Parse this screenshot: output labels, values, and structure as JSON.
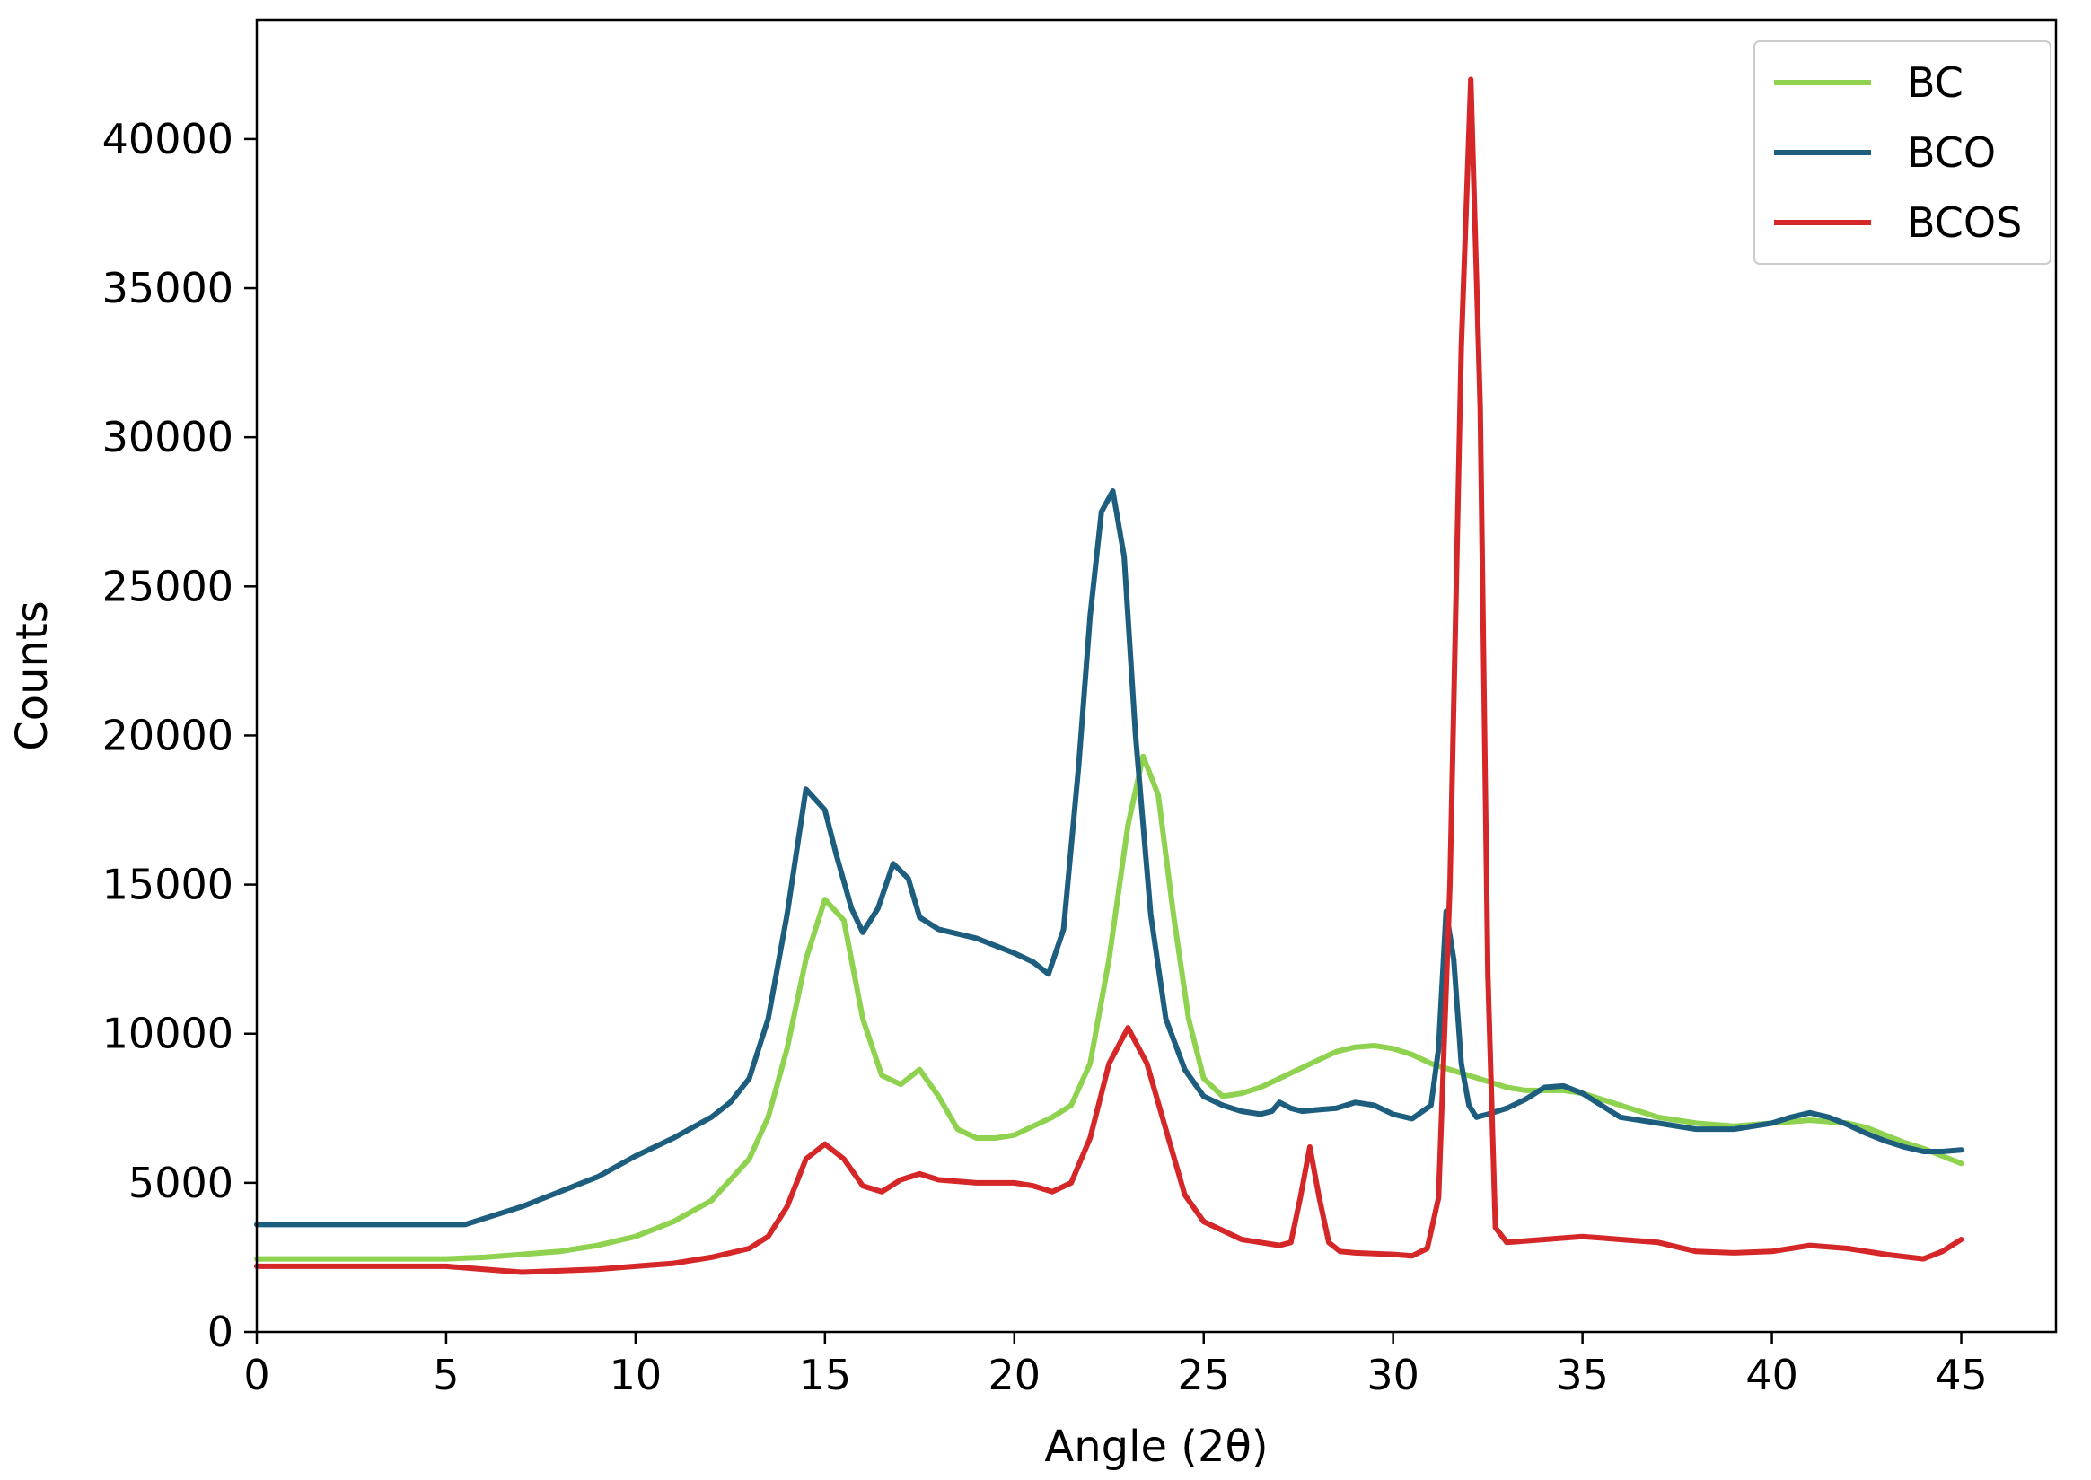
{
  "chart_data": {
    "type": "line",
    "title": "",
    "xlabel": "Angle (2θ)",
    "ylabel": "Counts",
    "xlim": [
      0,
      47.5
    ],
    "ylim": [
      0,
      44000
    ],
    "xticks": [
      0,
      5,
      10,
      15,
      20,
      25,
      30,
      35,
      40,
      45
    ],
    "yticks": [
      0,
      5000,
      10000,
      15000,
      20000,
      25000,
      30000,
      35000,
      40000
    ],
    "grid": false,
    "legend_position": "top-right",
    "series": [
      {
        "name": "BC",
        "color": "#8ed24f",
        "x": [
          0,
          5,
          6,
          7,
          8,
          9,
          10,
          11,
          12,
          13,
          13.5,
          14,
          14.5,
          15,
          15.5,
          16,
          16.5,
          17,
          17.5,
          18,
          18.5,
          19,
          19.5,
          20,
          20.5,
          21,
          21.5,
          22,
          22.5,
          23,
          23.4,
          23.8,
          24.2,
          24.6,
          25,
          25.5,
          26,
          26.5,
          27,
          27.5,
          28,
          28.5,
          29,
          29.5,
          30,
          30.5,
          31,
          31.5,
          32,
          32.5,
          33,
          33.5,
          34,
          34.5,
          35,
          35.5,
          36,
          36.5,
          37,
          37.5,
          38,
          38.5,
          39,
          39.5,
          40,
          40.5,
          41,
          41.5,
          42,
          42.5,
          43,
          43.5,
          44,
          44.5,
          45
        ],
        "y": [
          2450,
          2450,
          2500,
          2600,
          2700,
          2900,
          3200,
          3700,
          4400,
          5800,
          7200,
          9500,
          12500,
          14500,
          13800,
          10500,
          8600,
          8300,
          8800,
          7900,
          6800,
          6500,
          6500,
          6600,
          6900,
          7200,
          7600,
          9000,
          12500,
          17000,
          19300,
          18000,
          14000,
          10500,
          8500,
          7900,
          8000,
          8200,
          8500,
          8800,
          9100,
          9400,
          9550,
          9600,
          9500,
          9300,
          9000,
          8800,
          8600,
          8400,
          8200,
          8100,
          8100,
          8100,
          8000,
          7800,
          7600,
          7400,
          7200,
          7100,
          7000,
          6950,
          6900,
          6950,
          7000,
          7050,
          7100,
          7050,
          7000,
          6850,
          6600,
          6350,
          6150,
          5900,
          5650
        ]
      },
      {
        "name": "BCO",
        "color": "#1d5e7f",
        "x": [
          0,
          5,
          5.5,
          6,
          7,
          8,
          9,
          10,
          11,
          12,
          12.5,
          13,
          13.5,
          14,
          14.5,
          15,
          15.3,
          15.7,
          16,
          16.4,
          16.8,
          17.2,
          17.5,
          18,
          19,
          20,
          20.5,
          20.9,
          21.3,
          21.7,
          22,
          22.3,
          22.6,
          22.9,
          23.2,
          23.6,
          24,
          24.5,
          25,
          25.5,
          26,
          26.5,
          26.8,
          27,
          27.3,
          27.6,
          28,
          28.5,
          29,
          29.5,
          30,
          30.5,
          31,
          31.2,
          31.4,
          31.6,
          31.8,
          32,
          32.2,
          32.5,
          33,
          33.5,
          34,
          34.5,
          35,
          35.5,
          36,
          37,
          38,
          39,
          40,
          40.5,
          41,
          41.5,
          42,
          42.5,
          43,
          43.5,
          44,
          44.5,
          45
        ],
        "y": [
          3600,
          3600,
          3600,
          3800,
          4200,
          4700,
          5200,
          5900,
          6500,
          7200,
          7700,
          8500,
          10500,
          14000,
          18200,
          17500,
          16000,
          14200,
          13400,
          14200,
          15700,
          15200,
          13900,
          13500,
          13200,
          12700,
          12400,
          12000,
          13500,
          19000,
          24000,
          27500,
          28200,
          26000,
          20000,
          14000,
          10500,
          8800,
          7900,
          7600,
          7400,
          7300,
          7400,
          7700,
          7500,
          7400,
          7450,
          7500,
          7700,
          7600,
          7300,
          7150,
          7600,
          9500,
          14100,
          12500,
          9000,
          7600,
          7200,
          7300,
          7500,
          7800,
          8200,
          8250,
          8000,
          7600,
          7200,
          7000,
          6800,
          6800,
          7000,
          7200,
          7350,
          7200,
          6950,
          6650,
          6400,
          6200,
          6050,
          6050,
          6100
        ]
      },
      {
        "name": "BCOS",
        "color": "#d52628",
        "x": [
          0,
          5,
          6,
          7,
          8,
          9,
          10,
          11,
          12,
          13,
          13.5,
          14,
          14.5,
          15,
          15.5,
          16,
          16.5,
          17,
          17.5,
          18,
          19,
          20,
          20.5,
          21,
          21.5,
          22,
          22.5,
          23,
          23.5,
          24,
          24.5,
          25,
          25.5,
          26,
          26.5,
          27,
          27.3,
          27.55,
          27.8,
          28.05,
          28.3,
          28.6,
          29,
          30,
          30.5,
          30.9,
          31.2,
          31.5,
          31.8,
          32.05,
          32.3,
          32.5,
          32.7,
          33,
          34,
          35,
          36,
          37,
          38,
          39,
          40,
          41,
          42,
          43,
          44,
          44.5,
          45
        ],
        "y": [
          2200,
          2200,
          2100,
          2000,
          2050,
          2100,
          2200,
          2300,
          2500,
          2800,
          3200,
          4200,
          5800,
          6300,
          5800,
          4900,
          4700,
          5100,
          5300,
          5100,
          5000,
          5000,
          4900,
          4700,
          5000,
          6500,
          9000,
          10200,
          9000,
          6800,
          4600,
          3700,
          3400,
          3100,
          3000,
          2900,
          3000,
          4500,
          6200,
          4500,
          3000,
          2700,
          2650,
          2600,
          2550,
          2800,
          4500,
          15000,
          33000,
          42000,
          31000,
          12000,
          3500,
          3000,
          3100,
          3200,
          3100,
          3000,
          2700,
          2650,
          2700,
          2900,
          2800,
          2600,
          2450,
          2700,
          3100
        ]
      }
    ]
  }
}
